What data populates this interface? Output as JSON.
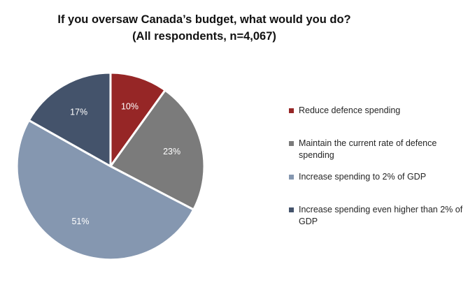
{
  "chart_data": {
    "type": "pie",
    "title_lines": [
      "If you oversaw Canada’s budget, what would you do?",
      "(All respondents, n=4,067)"
    ],
    "slices": [
      {
        "label": "Reduce defence spending",
        "value": 10,
        "display": "10%",
        "color": "#962626"
      },
      {
        "label": "Maintain the current rate of defence spending",
        "value": 23,
        "display": "23%",
        "color": "#7b7b7b"
      },
      {
        "label": "Increase spending to 2% of GDP",
        "value": 51,
        "display": "51%",
        "color": "#8597b0"
      },
      {
        "label": "Increase spending even higher than 2% of GDP",
        "value": 17,
        "display": "17%",
        "color": "#44536b"
      }
    ],
    "legend_position": "right"
  }
}
